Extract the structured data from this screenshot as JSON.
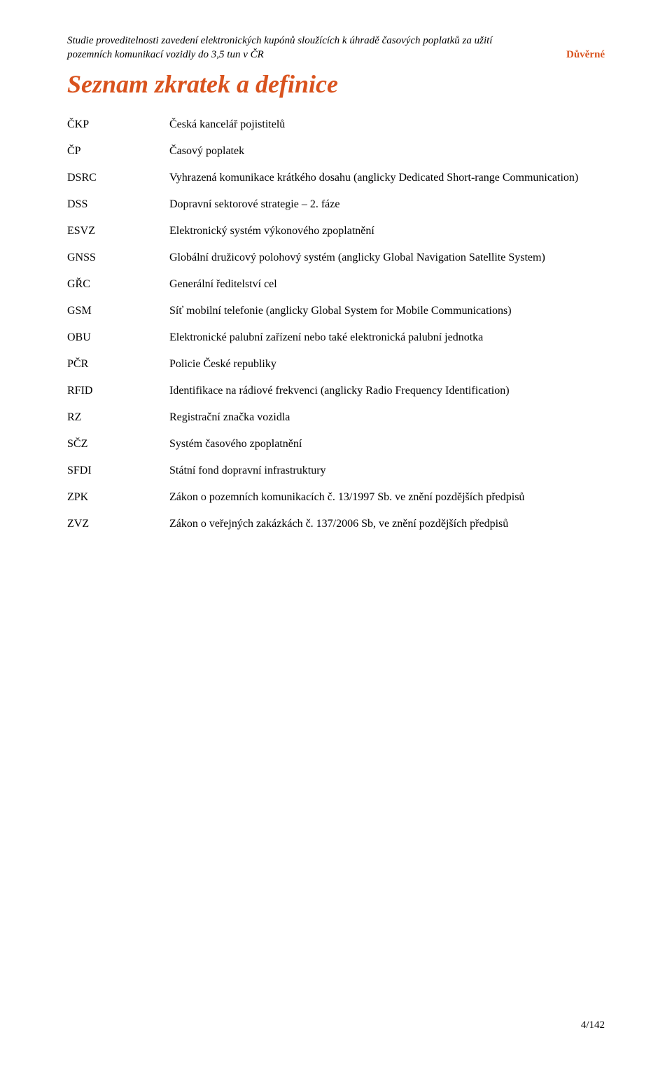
{
  "colors": {
    "accent": "#d9531e",
    "text": "#000000",
    "background": "#ffffff"
  },
  "header": {
    "left": "Studie proveditelnosti zavedení elektronických kupónů sloužících k úhradě časových poplatků za užití pozemních komunikací vozidly do 3,5 tun v ČR",
    "right": "Důvěrné"
  },
  "title": "Seznam zkratek a definice",
  "definitions": [
    {
      "abbr": "ČKP",
      "desc": "Česká kancelář pojistitelů"
    },
    {
      "abbr": "ČP",
      "desc": "Časový poplatek"
    },
    {
      "abbr": "DSRC",
      "desc": "Vyhrazená komunikace krátkého dosahu (anglicky Dedicated Short-range Communication)",
      "justify": true
    },
    {
      "abbr": "DSS",
      "desc": "Dopravní sektorové strategie – 2. fáze"
    },
    {
      "abbr": "ESVZ",
      "desc": "Elektronický systém výkonového zpoplatnění"
    },
    {
      "abbr": "GNSS",
      "desc": "Globální družicový polohový systém (anglicky Global Navigation Satellite System)",
      "justify": true
    },
    {
      "abbr": "GŘC",
      "desc": "Generální ředitelství cel"
    },
    {
      "abbr": "GSM",
      "desc": "Síť mobilní telefonie (anglicky Global System for Mobile Communications)",
      "justify": true
    },
    {
      "abbr": "OBU",
      "desc": "Elektronické palubní zařízení nebo také elektronická palubní jednotka",
      "justify": true
    },
    {
      "abbr": "PČR",
      "desc": "Policie České republiky"
    },
    {
      "abbr": "RFID",
      "desc": "Identifikace na rádiové frekvenci (anglicky Radio Frequency Identification)",
      "justify": true
    },
    {
      "abbr": "RZ",
      "desc": "Registrační značka vozidla"
    },
    {
      "abbr": "SČZ",
      "desc": "Systém časového zpoplatnění"
    },
    {
      "abbr": "SFDI",
      "desc": "Státní fond dopravní infrastruktury"
    },
    {
      "abbr": "ZPK",
      "desc": "Zákon o pozemních komunikacích č. 13/1997 Sb. ve znění pozdějších předpisů",
      "justify": true
    },
    {
      "abbr": "ZVZ",
      "desc": "Zákon o veřejných zakázkách č. 137/2006 Sb, ve znění pozdějších předpisů",
      "justify": true
    }
  ],
  "footer": {
    "page": "4/142"
  }
}
